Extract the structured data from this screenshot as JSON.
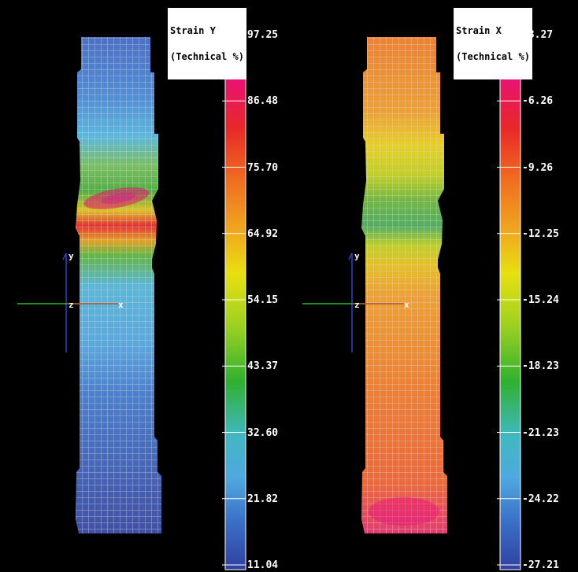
{
  "panels": [
    {
      "title_line1": "Strain Y",
      "title_line2": "(Technical %)",
      "ticks": [
        "97.25",
        "86.48",
        "75.70",
        "64.92",
        "54.15",
        "43.37",
        "32.60",
        "21.82",
        "11.04"
      ],
      "axes": {
        "y": "y",
        "z": "z",
        "x": "x"
      }
    },
    {
      "title_line1": "Strain X",
      "title_line2": "(Technical %)",
      "ticks": [
        "-3.27",
        "-6.26",
        "-9.26",
        "-12.25",
        "-15.24",
        "-18.23",
        "-21.23",
        "-24.22",
        "-27.21"
      ],
      "axes": {
        "y": "y",
        "z": "z",
        "x": "x"
      }
    }
  ],
  "colors": {
    "colormap": [
      "#c050b0",
      "#e8107a",
      "#e82828",
      "#f07020",
      "#f0a020",
      "#e8e010",
      "#9ad020",
      "#30b030",
      "#40b8c0",
      "#50a8e0",
      "#3a70c8",
      "#3040a0"
    ]
  }
}
